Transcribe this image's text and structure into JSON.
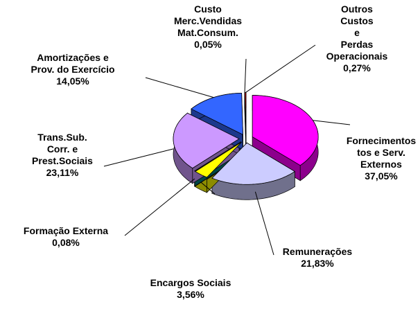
{
  "chart_data": {
    "type": "pie",
    "categories": [
      "Fornecimentos\ntos e Serv.\nExternos",
      "Remunerações",
      "Encargos Sociais",
      "Formação Externa",
      "Trans.Sub.\nCorr. e\nPrest.Sociais",
      "Amortizações e\nProv. do Exercício",
      "Custo\nMerc.Vendidas\nMat.Consum.",
      "Outros Custos\ne\nPerdas\nOperacionais"
    ],
    "values": [
      37.05,
      21.83,
      3.56,
      0.08,
      23.11,
      14.05,
      0.05,
      0.27
    ],
    "value_labels": [
      "37,05%",
      "21,83%",
      "3,56%",
      "0,08%",
      "23,11%",
      "14,05%",
      "0,05%",
      "0,27%"
    ],
    "colors": [
      "#ff00ff",
      "#ccccff",
      "#ffff00",
      "#008080",
      "#cc99ff",
      "#3366ff",
      "#000080",
      "#ff0000"
    ]
  }
}
